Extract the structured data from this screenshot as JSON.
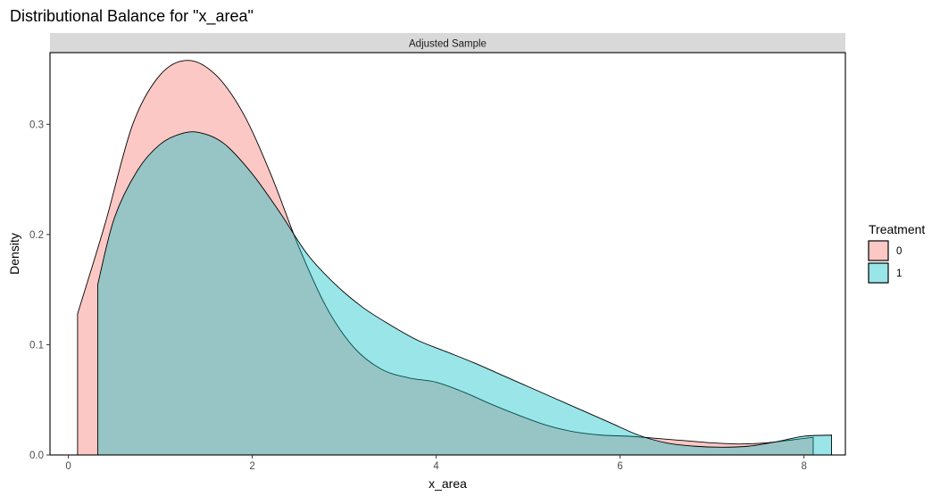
{
  "chart_data": {
    "type": "area",
    "title": "Distributional Balance for \"x_area\"",
    "facet_label": "Adjusted Sample",
    "xlabel": "x_area",
    "ylabel": "Density",
    "xlim": [
      -0.2,
      8.45
    ],
    "ylim": [
      0,
      0.365
    ],
    "x_ticks": [
      0,
      2,
      4,
      6,
      8
    ],
    "y_ticks": [
      0.0,
      0.1,
      0.2,
      0.3
    ],
    "x_tick_labels": [
      "0",
      "2",
      "4",
      "6",
      "8"
    ],
    "y_tick_labels": [
      "0.0",
      "0.1",
      "0.2",
      "0.3"
    ],
    "grid": false,
    "legend": {
      "title": "Treatment",
      "position": "right"
    },
    "series": [
      {
        "name": "0",
        "color": "#F8766D",
        "fill_opacity": 0.4,
        "x": [
          0.1,
          0.4,
          0.7,
          1.0,
          1.3,
          1.6,
          1.9,
          2.2,
          2.5,
          2.8,
          3.1,
          3.4,
          3.7,
          4.0,
          4.3,
          4.6,
          4.9,
          5.2,
          5.5,
          5.8,
          6.1,
          6.4,
          6.7,
          7.0,
          7.3,
          7.6,
          7.9,
          8.1
        ],
        "y": [
          0.128,
          0.21,
          0.3,
          0.345,
          0.358,
          0.345,
          0.31,
          0.255,
          0.19,
          0.135,
          0.098,
          0.078,
          0.07,
          0.066,
          0.057,
          0.046,
          0.036,
          0.027,
          0.021,
          0.018,
          0.017,
          0.015,
          0.013,
          0.011,
          0.01,
          0.011,
          0.014,
          0.016
        ]
      },
      {
        "name": "1",
        "color": "#00BFC4",
        "fill_opacity": 0.4,
        "x": [
          0.32,
          0.5,
          0.75,
          1.0,
          1.25,
          1.45,
          1.7,
          2.0,
          2.3,
          2.6,
          2.9,
          3.2,
          3.5,
          3.8,
          4.1,
          4.4,
          4.7,
          5.0,
          5.3,
          5.6,
          5.9,
          6.2,
          6.5,
          6.8,
          7.1,
          7.4,
          7.7,
          8.0,
          8.3
        ],
        "y": [
          0.155,
          0.215,
          0.258,
          0.282,
          0.292,
          0.292,
          0.282,
          0.255,
          0.22,
          0.182,
          0.155,
          0.134,
          0.118,
          0.104,
          0.094,
          0.084,
          0.073,
          0.062,
          0.051,
          0.04,
          0.029,
          0.018,
          0.011,
          0.008,
          0.007,
          0.008,
          0.012,
          0.017,
          0.018
        ]
      }
    ]
  }
}
